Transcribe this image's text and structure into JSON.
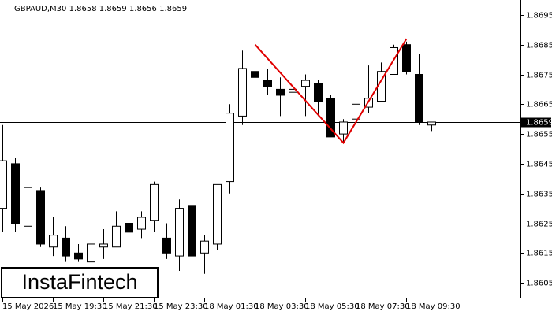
{
  "chart_data": {
    "type": "candlestick",
    "title": "GBPAUD,M30  1.8658 1.8659 1.8656 1.8659",
    "categories": [
      "15 May 2026",
      null,
      null,
      null,
      "15 May 19:30",
      null,
      null,
      null,
      "15 May 21:30",
      null,
      null,
      null,
      "15 May 23:30",
      null,
      null,
      null,
      "18 May 01:30",
      null,
      null,
      null,
      "18 May 03:30",
      null,
      null,
      null,
      "18 May 05:30",
      null,
      null,
      null,
      "18 May 07:30",
      null,
      null,
      null,
      "18 May 09:30",
      null,
      null
    ],
    "open": [
      1.863,
      1.8645,
      1.8624,
      1.8636,
      1.8617,
      1.862,
      1.8615,
      1.8612,
      1.8617,
      1.8617,
      1.8625,
      1.8623,
      1.8626,
      1.862,
      1.8614,
      1.8631,
      1.8615,
      1.8618,
      1.8639,
      1.8661,
      1.8676,
      1.8673,
      1.867,
      1.8669,
      1.8671,
      1.8672,
      1.8667,
      1.8655,
      1.866,
      1.8664,
      1.8666,
      1.8675,
      1.8685,
      1.8675,
      1.8658
    ],
    "high": [
      1.8658,
      1.8647,
      1.8638,
      1.8637,
      1.8627,
      1.8624,
      1.8618,
      1.862,
      1.8623,
      1.8629,
      1.8626,
      1.8629,
      1.8639,
      1.8625,
      1.8633,
      1.8636,
      1.8621,
      1.8638,
      1.8665,
      1.8683,
      1.8682,
      1.8677,
      1.8674,
      1.8674,
      1.8675,
      1.8673,
      1.8668,
      1.866,
      1.8669,
      1.8678,
      1.8679,
      1.8685,
      1.8686,
      1.8682,
      1.8659
    ],
    "low": [
      1.8622,
      1.8622,
      1.862,
      1.8617,
      1.8614,
      1.8612,
      1.8612,
      1.8612,
      1.8613,
      1.8617,
      1.8621,
      1.862,
      1.8622,
      1.8613,
      1.8609,
      1.8613,
      1.8608,
      1.8616,
      1.8635,
      1.8658,
      1.8669,
      1.8668,
      1.8661,
      1.8661,
      1.8661,
      1.8661,
      1.8654,
      1.8652,
      1.8657,
      1.8662,
      1.8666,
      1.8675,
      1.8675,
      1.8658,
      1.8656
    ],
    "close": [
      1.8646,
      1.8625,
      1.8637,
      1.8618,
      1.8621,
      1.8614,
      1.8613,
      1.8618,
      1.8618,
      1.8624,
      1.8622,
      1.8627,
      1.8638,
      1.8615,
      1.863,
      1.8614,
      1.8619,
      1.8638,
      1.8662,
      1.8677,
      1.8674,
      1.8671,
      1.8668,
      1.867,
      1.8673,
      1.8666,
      1.8654,
      1.8659,
      1.8665,
      1.8667,
      1.8676,
      1.8684,
      1.8676,
      1.8659,
      1.8659
    ],
    "up_color": "#ffffff",
    "down_color": "#000000",
    "ylim": [
      1.86,
      1.87
    ],
    "yticks": [
      1.8605,
      1.8615,
      1.8625,
      1.8635,
      1.8645,
      1.8655,
      1.8665,
      1.8675,
      1.8685,
      1.8695
    ],
    "current_price": 1.8659,
    "pattern": {
      "x": [
        20,
        27,
        32
      ],
      "values": [
        1.8685,
        1.8652,
        1.8687
      ],
      "color": "#e00000"
    },
    "watermark": "InstaFintech"
  }
}
